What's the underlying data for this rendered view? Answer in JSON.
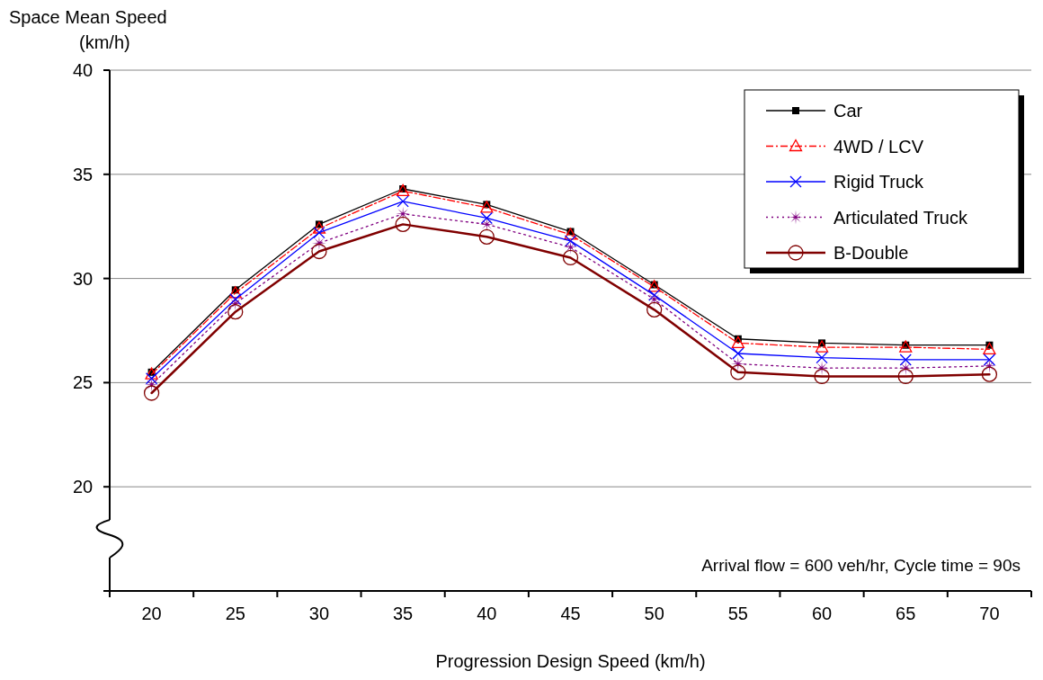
{
  "chart_data": {
    "type": "line",
    "xlabel": "Progression Design Speed (km/h)",
    "ylabel": "Space Mean Speed (km/h)",
    "categories": [
      "20",
      "25",
      "30",
      "35",
      "40",
      "45",
      "50",
      "55",
      "60",
      "65",
      "70"
    ],
    "ylim": [
      15,
      40
    ],
    "yticks": [
      20,
      25,
      30,
      35,
      40
    ],
    "grid": "y",
    "legend": "top right",
    "annotations": [
      "Arrival flow = 600 veh/hr, Cycle time = 90s"
    ],
    "series": [
      {
        "name": "Car",
        "color": "#000000",
        "marker": "square",
        "line_style": "solid",
        "values": [
          25.5,
          29.45,
          32.6,
          34.3,
          33.55,
          32.25,
          29.7,
          27.1,
          26.9,
          26.8,
          26.8
        ]
      },
      {
        "name": "4WD / LCV",
        "color": "#ff0000",
        "marker": "triangle",
        "line_style": "dashed",
        "values": [
          25.4,
          29.3,
          32.4,
          34.2,
          33.4,
          32.1,
          29.6,
          26.9,
          26.7,
          26.7,
          26.6
        ]
      },
      {
        "name": "Rigid Truck",
        "color": "#0000ff",
        "marker": "cross",
        "line_style": "solid",
        "values": [
          25.2,
          29.0,
          32.2,
          33.7,
          32.9,
          31.8,
          29.2,
          26.4,
          26.2,
          26.1,
          26.1
        ]
      },
      {
        "name": "Articulated Truck",
        "color": "#800080",
        "marker": "star",
        "line_style": "dotted",
        "values": [
          24.9,
          28.8,
          31.7,
          33.1,
          32.6,
          31.5,
          29.0,
          25.9,
          25.7,
          25.7,
          25.8
        ]
      },
      {
        "name": "B-Double",
        "color": "#800000",
        "marker": "circle",
        "line_style": "solid",
        "values": [
          24.5,
          28.4,
          31.3,
          32.6,
          32.0,
          31.0,
          28.5,
          25.5,
          25.3,
          25.3,
          25.4
        ]
      }
    ]
  }
}
